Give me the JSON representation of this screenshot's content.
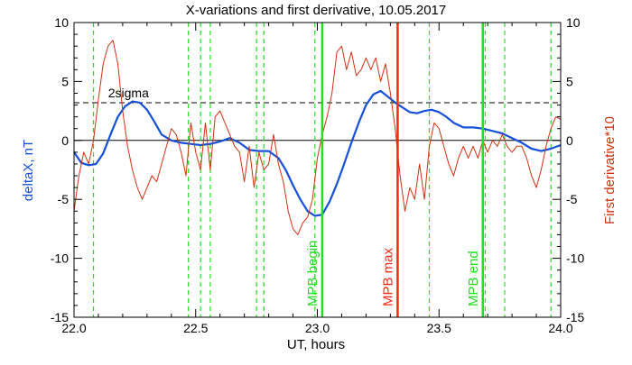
{
  "chart_data": {
    "type": "line",
    "title": "X-variations and first derivative, 10.05.2017",
    "xlabel": "UT, hours",
    "ylabel_left": "deltaX, nT",
    "ylabel_right": "First derivative*10",
    "xlim": [
      22.0,
      24.0
    ],
    "ylim": [
      -15,
      10
    ],
    "x_ticks": [
      22.0,
      22.5,
      23.0,
      23.5,
      24.0
    ],
    "x_tick_labels": [
      "22.0",
      "22.5",
      "23.0",
      "23.5",
      "24.0"
    ],
    "y_ticks": [
      -15,
      -10,
      -5,
      0,
      5,
      10
    ],
    "y_tick_labels": [
      "-15",
      "-10",
      "-5",
      "0",
      "5",
      "10"
    ],
    "y_minor_step": 1,
    "x_minor_step": 0.1,
    "sigma_level": 3.2,
    "sigma_label": "2sigma",
    "zero_line": 0,
    "colors": {
      "deltaX": "#1550d8",
      "derivative": "#d03010",
      "markers": "#22dd22",
      "mpb_max": "#ee2a10",
      "axis": "#000000"
    },
    "dashed_markers": [
      22.08,
      22.47,
      22.52,
      22.56,
      22.75,
      22.78,
      22.99,
      23.46,
      23.69,
      23.77,
      23.96
    ],
    "vertical_lines": [
      {
        "x": 23.02,
        "label": "MPB begin",
        "color": "#22dd22"
      },
      {
        "x": 23.33,
        "label": "MPB max",
        "color": "#ee2a10"
      },
      {
        "x": 23.68,
        "label": "MPB end",
        "color": "#22dd22"
      }
    ],
    "series": [
      {
        "name": "deltaX",
        "axis": "left",
        "x": [
          22.0,
          22.03,
          22.06,
          22.09,
          22.12,
          22.15,
          22.18,
          22.21,
          22.24,
          22.27,
          22.3,
          22.33,
          22.36,
          22.4,
          22.44,
          22.48,
          22.52,
          22.56,
          22.6,
          22.64,
          22.68,
          22.72,
          22.76,
          22.8,
          22.84,
          22.87,
          22.9,
          22.93,
          22.96,
          22.99,
          23.02,
          23.05,
          23.08,
          23.11,
          23.14,
          23.17,
          23.2,
          23.23,
          23.26,
          23.29,
          23.32,
          23.35,
          23.38,
          23.41,
          23.44,
          23.47,
          23.5,
          23.53,
          23.56,
          23.6,
          23.64,
          23.68,
          23.72,
          23.76,
          23.8,
          23.84,
          23.88,
          23.92,
          23.96,
          24.0
        ],
        "y": [
          -1.0,
          -1.9,
          -2.1,
          -2.0,
          -1.1,
          0.5,
          2.0,
          2.9,
          3.3,
          3.2,
          2.6,
          1.6,
          0.5,
          0.0,
          -0.2,
          -0.3,
          -0.4,
          -0.3,
          -0.1,
          0.2,
          -0.2,
          -0.8,
          -0.9,
          -0.9,
          -1.5,
          -2.5,
          -3.8,
          -5.0,
          -6.0,
          -6.4,
          -6.3,
          -5.2,
          -3.7,
          -2.0,
          -0.2,
          1.5,
          3.0,
          3.9,
          4.2,
          3.7,
          3.2,
          2.8,
          2.4,
          2.3,
          2.5,
          2.6,
          2.4,
          2.0,
          1.5,
          1.1,
          1.1,
          1.0,
          0.8,
          0.6,
          0.2,
          -0.2,
          -0.7,
          -0.9,
          -0.7,
          -0.4
        ]
      },
      {
        "name": "First derivative*10",
        "axis": "right",
        "x": [
          22.0,
          22.02,
          22.04,
          22.06,
          22.08,
          22.1,
          22.12,
          22.14,
          22.16,
          22.18,
          22.2,
          22.22,
          22.24,
          22.26,
          22.28,
          22.3,
          22.32,
          22.34,
          22.36,
          22.38,
          22.4,
          22.42,
          22.44,
          22.46,
          22.48,
          22.5,
          22.52,
          22.54,
          22.56,
          22.58,
          22.6,
          22.62,
          22.64,
          22.66,
          22.68,
          22.7,
          22.72,
          22.74,
          22.76,
          22.78,
          22.8,
          22.82,
          22.84,
          22.86,
          22.88,
          22.9,
          22.92,
          22.94,
          22.96,
          22.98,
          23.0,
          23.02,
          23.04,
          23.06,
          23.08,
          23.1,
          23.12,
          23.14,
          23.16,
          23.18,
          23.2,
          23.22,
          23.24,
          23.26,
          23.28,
          23.3,
          23.32,
          23.33,
          23.34,
          23.36,
          23.38,
          23.4,
          23.42,
          23.44,
          23.46,
          23.48,
          23.5,
          23.52,
          23.54,
          23.56,
          23.58,
          23.6,
          23.62,
          23.64,
          23.66,
          23.68,
          23.7,
          23.72,
          23.74,
          23.76,
          23.78,
          23.8,
          23.82,
          23.84,
          23.86,
          23.88,
          23.9,
          23.92,
          23.94,
          23.96,
          23.98,
          24.0
        ],
        "y": [
          -6.0,
          -3.0,
          -1.0,
          -2.0,
          0.0,
          3.5,
          6.5,
          8.0,
          8.5,
          6.5,
          2.5,
          -0.5,
          -2.5,
          -4.0,
          -5.0,
          -4.0,
          -3.0,
          -3.5,
          -2.0,
          -0.5,
          1.0,
          0.5,
          -1.0,
          -3.0,
          1.5,
          -1.0,
          -2.5,
          1.5,
          -2.5,
          2.0,
          2.5,
          1.5,
          0.5,
          -0.5,
          -1.0,
          -3.5,
          -0.5,
          -4.0,
          -1.0,
          -2.5,
          -2.0,
          0.5,
          -2.0,
          -3.5,
          -6.0,
          -7.5,
          -8.0,
          -7.0,
          -6.5,
          -5.0,
          -1.5,
          0.5,
          2.0,
          4.0,
          7.5,
          8.0,
          6.0,
          7.5,
          5.5,
          6.0,
          7.0,
          6.0,
          7.0,
          5.0,
          6.5,
          4.0,
          1.0,
          -1.0,
          -3.0,
          -6.0,
          -4.0,
          -5.0,
          -2.0,
          -5.0,
          -0.5,
          1.5,
          1.0,
          -0.5,
          -2.0,
          -3.0,
          -1.5,
          -0.5,
          -1.5,
          -0.5,
          -1.5,
          0.0,
          -1.0,
          0.0,
          -0.5,
          0.5,
          -0.5,
          -1.0,
          -0.5,
          -0.5,
          -1.5,
          -3.0,
          -4.0,
          -2.5,
          -0.5,
          1.0,
          2.0,
          1.8
        ]
      }
    ]
  }
}
